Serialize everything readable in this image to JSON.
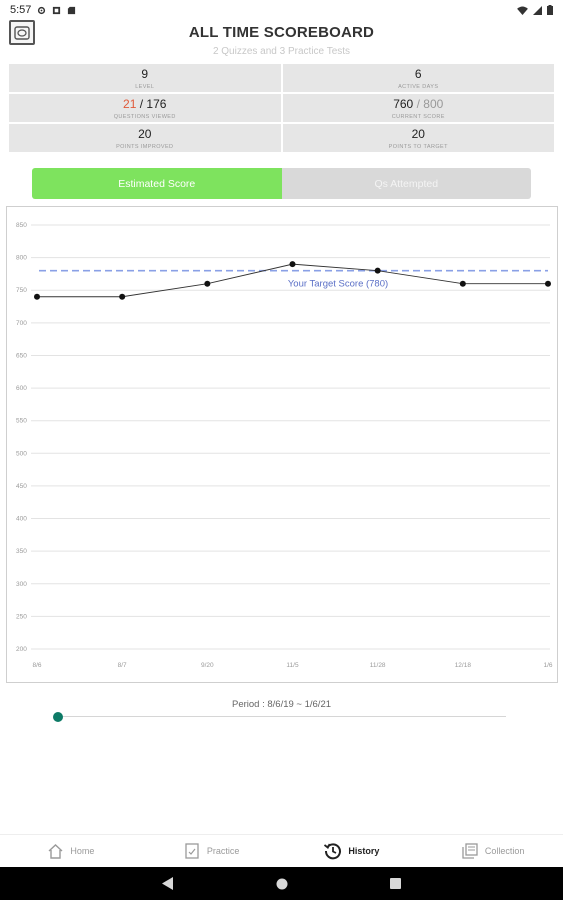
{
  "status_bar": {
    "time": "5:57"
  },
  "header": {
    "title": "ALL TIME SCOREBOARD",
    "subtitle": "2 Quizzes and 3 Practice Tests"
  },
  "stats": {
    "level": {
      "value": "9",
      "label": "LEVEL"
    },
    "active_days": {
      "value": "6",
      "label": "ACTIVE DAYS"
    },
    "questions_viewed": {
      "value_a": "21",
      "separator": "/",
      "value_b": "176",
      "label": "QUESTIONS VIEWED"
    },
    "current_score": {
      "value_a": "760",
      "separator": "/",
      "value_b": "800",
      "label": "CURRENT SCORE"
    },
    "points_improved": {
      "value": "20",
      "label": "POINTS IMPROVED"
    },
    "points_to_target": {
      "value": "20",
      "label": "POINTS TO TARGET"
    }
  },
  "toggle": {
    "active_label": "Estimated Score",
    "inactive_label": "Qs Attempted"
  },
  "colors": {
    "accent_green": "#7ee35e",
    "target_line": "#8aa0e6",
    "slider": "#0d7a66",
    "highlight_red": "#e05a3a"
  },
  "chart_data": {
    "type": "line",
    "categories": [
      "8/6",
      "8/7",
      "9/20",
      "11/5",
      "11/28",
      "12/18",
      "1/6"
    ],
    "series": [
      {
        "values": [
          740,
          740,
          760,
          790,
          780,
          760,
          760
        ]
      }
    ],
    "ylim": [
      200,
      850
    ],
    "yticks": [
      200,
      250,
      300,
      350,
      400,
      450,
      500,
      550,
      600,
      650,
      700,
      750,
      800,
      850
    ],
    "target": {
      "value": 780,
      "label": "Your Target Score (780)"
    },
    "grid": true
  },
  "period": {
    "label": "Period : 8/6/19 ~ 1/6/21"
  },
  "bottom_nav": {
    "items": [
      {
        "label": "Home",
        "icon": "home-icon"
      },
      {
        "label": "Practice",
        "icon": "practice-icon"
      },
      {
        "label": "History",
        "icon": "history-icon"
      },
      {
        "label": "Collection",
        "icon": "collection-icon"
      }
    ]
  }
}
